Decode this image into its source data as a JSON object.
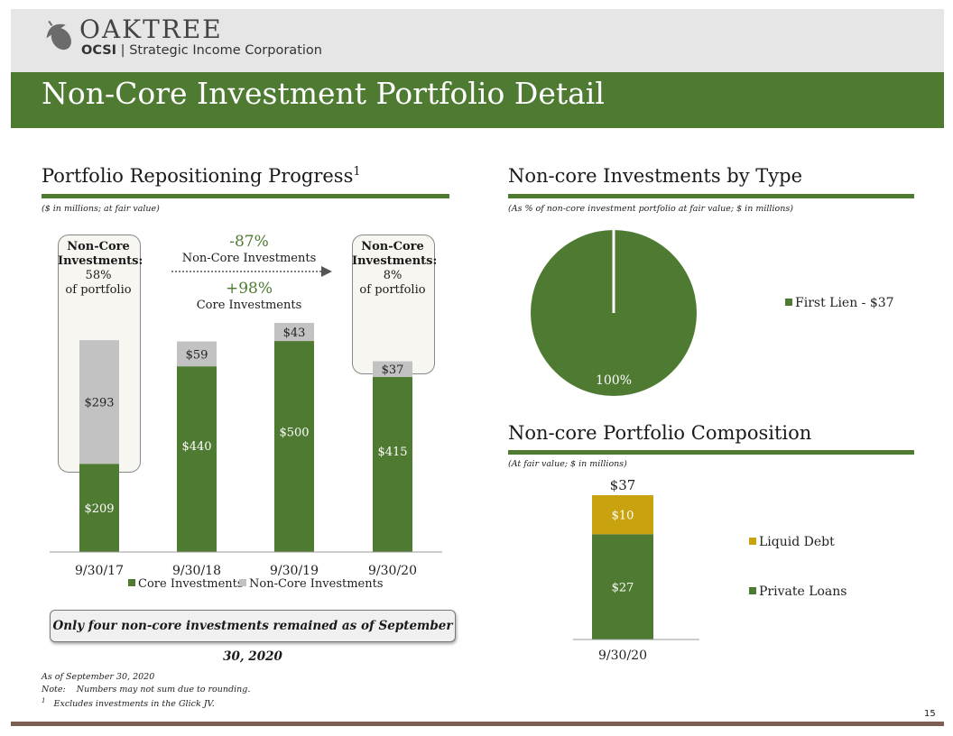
{
  "header": {
    "logo_word": "OAKTREE",
    "logo_ticker": "OCSI",
    "logo_company": "Strategic Income Corporation",
    "title": "Non-Core Investment Portfolio Detail"
  },
  "left_section": {
    "title": "Portfolio Repositioning Progress",
    "title_sup": "1",
    "subnote": "($ in millions; at fair value)",
    "callout_start": {
      "label": "Non-Core Investments:",
      "pct": "58%",
      "of": "of portfolio"
    },
    "callout_end": {
      "label": "Non-Core Investments:",
      "pct": "8%",
      "of": "of portfolio"
    },
    "change_noncore_pct": "-87%",
    "change_noncore_label": "Non-Core Investments",
    "change_core_pct": "+98%",
    "change_core_label": "Core Investments",
    "banner": "Only four non-core investments remained as of September 30, 2020"
  },
  "right_top": {
    "title": "Non-core Investments by Type",
    "subnote": "(As % of non-core investment portfolio at fair value; $ in millions)"
  },
  "right_bottom": {
    "title": "Non-core Portfolio Composition",
    "subnote": "(At fair value; $ in millions)"
  },
  "footnotes": {
    "asof": "As of September 30, 2020",
    "note_label": "Note:",
    "note_text": "Numbers may not sum due to rounding.",
    "fn1_mark": "1",
    "fn1_text": "Excludes investments in the Glick JV."
  },
  "page_number": "15",
  "colors": {
    "green": "#4e7a32",
    "gray": "#c2c2c2",
    "gold": "#c9a20f",
    "brown": "#7d5e52"
  },
  "chart_data": [
    {
      "type": "bar",
      "stacked": true,
      "categories": [
        "9/30/17",
        "9/30/18",
        "9/30/19",
        "9/30/20"
      ],
      "series": [
        {
          "name": "Core Investments",
          "values": [
            209,
            440,
            500,
            415
          ],
          "labels": [
            "$209",
            "$440",
            "$500",
            "$415"
          ]
        },
        {
          "name": "Non-Core Investments",
          "values": [
            293,
            59,
            43,
            37
          ],
          "labels": [
            "$293",
            "$59",
            "$43",
            "$37"
          ]
        }
      ],
      "ylim": [
        0,
        560
      ],
      "legend": "bottom"
    },
    {
      "type": "pie",
      "slices": [
        {
          "name": "First Lien - $37",
          "value": 100,
          "label": "100%"
        }
      ],
      "legend": "right"
    },
    {
      "type": "bar",
      "stacked": true,
      "categories": [
        "9/30/20"
      ],
      "series": [
        {
          "name": "Private Loans",
          "values": [
            27
          ],
          "labels": [
            "$27"
          ]
        },
        {
          "name": "Liquid Debt",
          "values": [
            10
          ],
          "labels": [
            "$10"
          ]
        }
      ],
      "total_label": "$37",
      "ylim": [
        0,
        37
      ],
      "legend": "right"
    }
  ]
}
